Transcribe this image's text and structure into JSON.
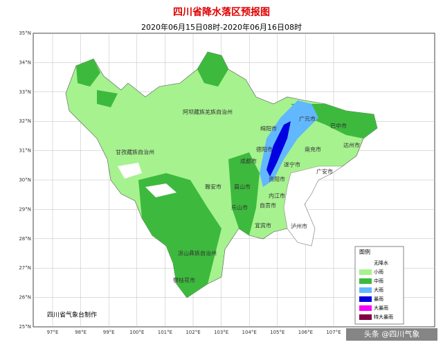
{
  "title": "四川省降水落区预报图",
  "subtitle": "2020年06月15日08时-2020年06月16日08时",
  "lat_labels": [
    "35°N",
    "34°N",
    "33°N",
    "32°N",
    "31°N",
    "30°N",
    "29°N",
    "28°N",
    "27°N",
    "26°N",
    "25°N"
  ],
  "lon_labels": [
    "97°E",
    "98°E",
    "99°E",
    "100°E",
    "101°E",
    "102°E",
    "103°E",
    "104°E",
    "105°E",
    "106°E",
    "107°E"
  ],
  "cities": [
    "阿坝藏族羌族自治州",
    "广元市",
    "巴中市",
    "绵阳市",
    "德阳市",
    "南充市",
    "达州市",
    "甘孜藏族自治州",
    "成都市",
    "遂宁市",
    "广安市",
    "资阳市",
    "雅安市",
    "眉山市",
    "内江市",
    "乐山市",
    "自贡市",
    "宜宾市",
    "泸州市",
    "凉山彝族自治州",
    "攀枝花市"
  ],
  "legend": {
    "title": "图例",
    "items": [
      {
        "label": "无降水",
        "color": "#ffffff"
      },
      {
        "label": "小雨",
        "color": "#a6f28f"
      },
      {
        "label": "中雨",
        "color": "#3dba3d"
      },
      {
        "label": "大雨",
        "color": "#61b8ff"
      },
      {
        "label": "暴雨",
        "color": "#0000e1"
      },
      {
        "label": "大暴雨",
        "color": "#fa00fa"
      },
      {
        "label": "特大暴雨",
        "color": "#800040"
      }
    ]
  },
  "credit": "四川省气象台制作",
  "watermark": "头条 @四川气象"
}
